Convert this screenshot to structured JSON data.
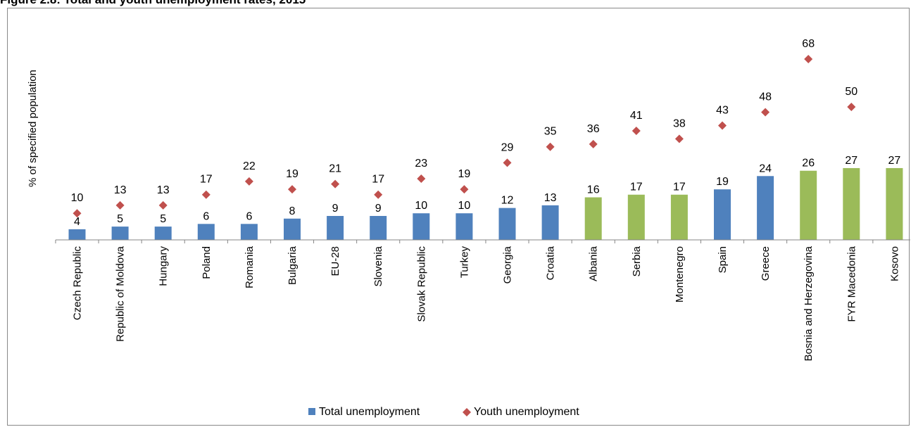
{
  "figure_title": "Figure 2.8: Total and youth unemployment rates, 2015",
  "chart_data": {
    "type": "bar",
    "ylabel": "% of specified population",
    "categories": [
      "Czech Republic",
      "Republic of Moldova",
      "Hungary",
      "Poland",
      "Romania",
      "Bulgaria",
      "EU-28",
      "Slovenia",
      "Slovak Republic",
      "Turkey",
      "Georgia",
      "Croatia",
      "Albania",
      "Serbia",
      "Montenegro",
      "Spain",
      "Greece",
      "Bosnia and Herzegovina",
      "FYR Macedonia",
      "Kosovo"
    ],
    "series": [
      {
        "name": "Total unemployment",
        "mark": "bar",
        "values": [
          4,
          5,
          5,
          6,
          6,
          8,
          9,
          9,
          10,
          10,
          12,
          13,
          16,
          17,
          17,
          19,
          24,
          26,
          27,
          27
        ],
        "bar_colors": [
          "#4f81bd",
          "#4f81bd",
          "#4f81bd",
          "#4f81bd",
          "#4f81bd",
          "#4f81bd",
          "#4f81bd",
          "#4f81bd",
          "#4f81bd",
          "#4f81bd",
          "#4f81bd",
          "#4f81bd",
          "#9bbb59",
          "#9bbb59",
          "#9bbb59",
          "#4f81bd",
          "#4f81bd",
          "#9bbb59",
          "#9bbb59",
          "#9bbb59"
        ],
        "color": "#4f81bd"
      },
      {
        "name": "Youth unemployment",
        "mark": "diamond",
        "values": [
          10,
          13,
          13,
          17,
          22,
          19,
          21,
          17,
          23,
          19,
          29,
          35,
          36,
          41,
          38,
          43,
          48,
          68,
          50,
          null
        ],
        "color": "#c0504d"
      }
    ],
    "ylim": [
      0,
      75
    ],
    "grid": false,
    "legend": "bottom-center"
  }
}
